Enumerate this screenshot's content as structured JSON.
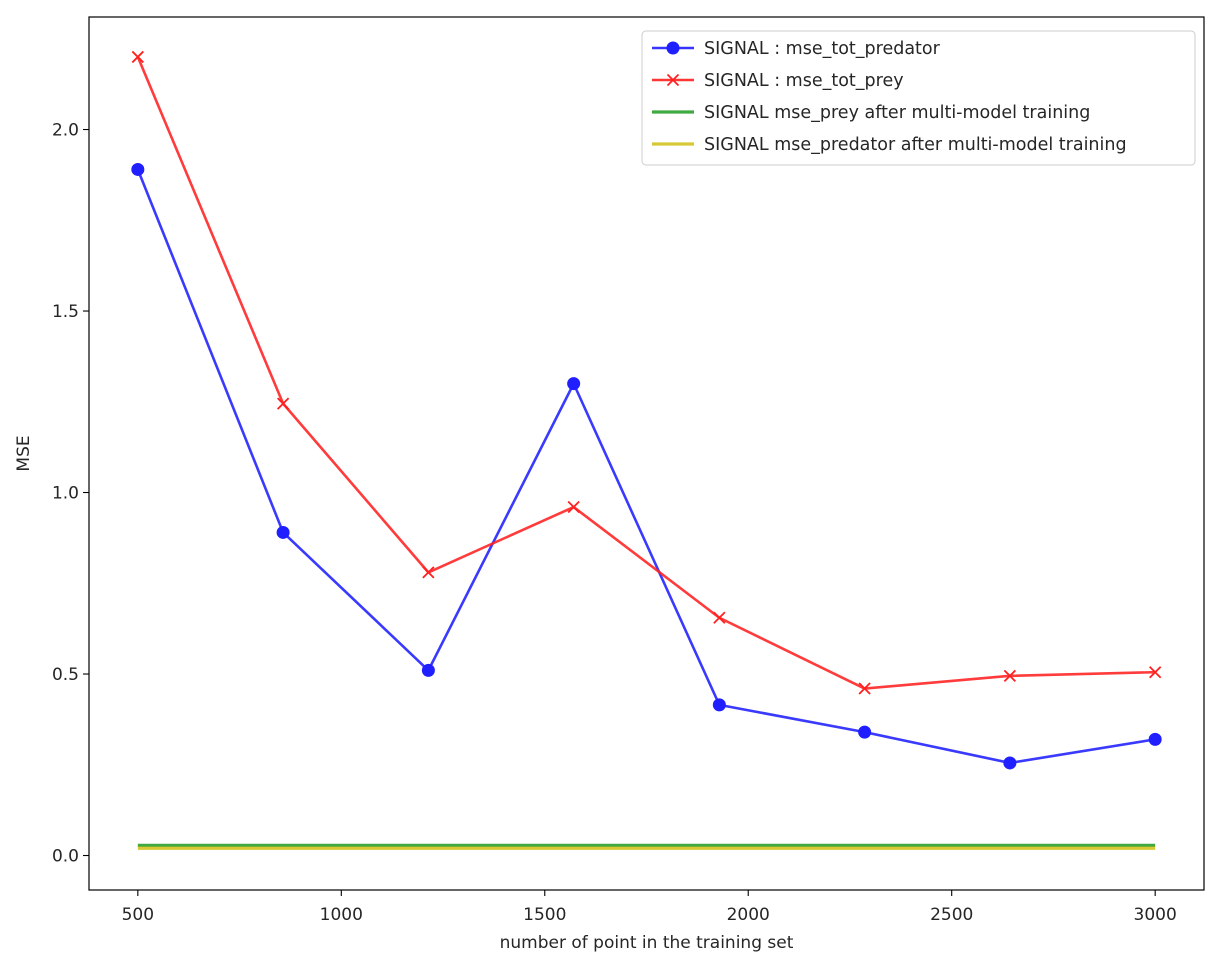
{
  "chart_data": {
    "type": "line",
    "title": "",
    "xlabel": "number of point in the training set",
    "ylabel": "MSE",
    "xlim": [
      380,
      3120
    ],
    "ylim": [
      -0.095,
      2.31
    ],
    "xticks": [
      500,
      1000,
      1500,
      2000,
      2500,
      3000
    ],
    "yticks": [
      0.0,
      0.5,
      1.0,
      1.5,
      2.0
    ],
    "ytick_labels": [
      "0.0",
      "0.5",
      "1.0",
      "1.5",
      "2.0"
    ],
    "grid": false,
    "legend_position": "top-right",
    "x": [
      500,
      857,
      1214,
      1571,
      1929,
      2286,
      2643,
      3000
    ],
    "series": [
      {
        "name": "SIGNAL : mse_tot_predator",
        "color": "#1f1fff",
        "marker": "circle",
        "values": [
          1.89,
          0.89,
          0.51,
          1.3,
          0.415,
          0.34,
          0.255,
          0.32
        ]
      },
      {
        "name": "SIGNAL : mse_tot_prey",
        "color": "#ff2020",
        "marker": "x",
        "values": [
          2.2,
          1.245,
          0.78,
          0.96,
          0.655,
          0.46,
          0.495,
          0.505
        ]
      },
      {
        "name": "SIGNAL mse_prey after multi-model training",
        "color": "#2ca02c",
        "marker": "none",
        "constant": 0.028
      },
      {
        "name": "SIGNAL mse_predator after multi-model training",
        "color": "#d4c21f",
        "marker": "none",
        "constant": 0.02
      }
    ]
  }
}
